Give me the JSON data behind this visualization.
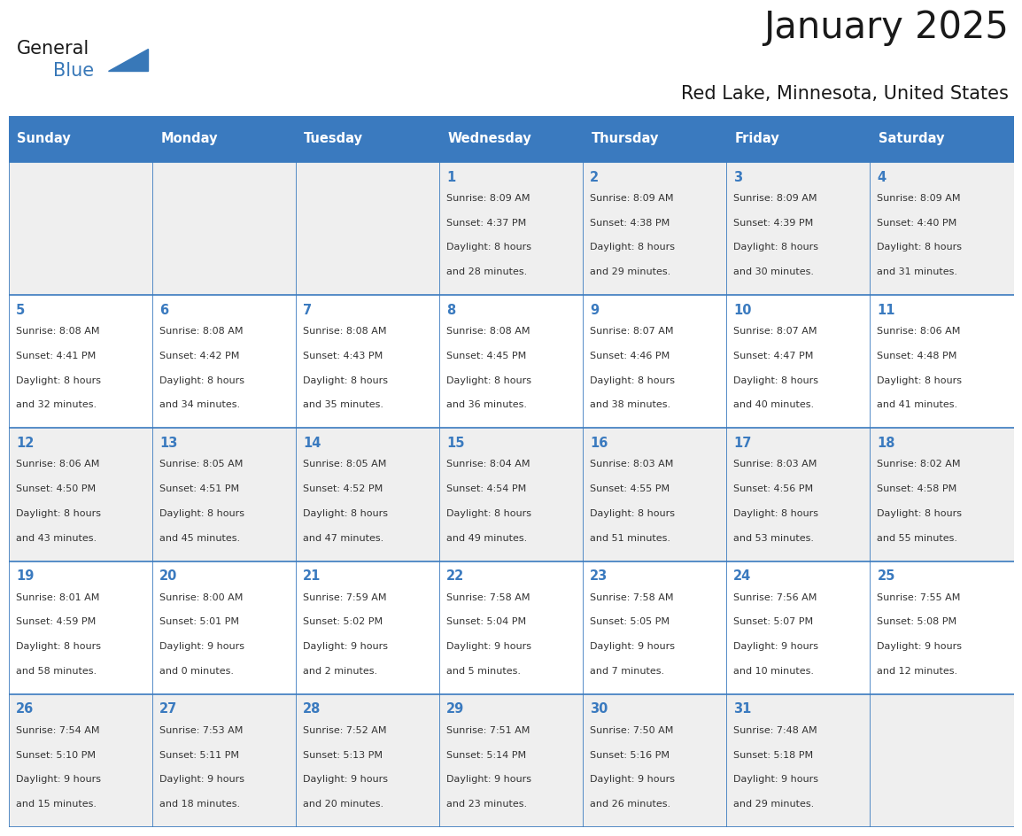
{
  "title": "January 2025",
  "subtitle": "Red Lake, Minnesota, United States",
  "header_bg": "#3a7abf",
  "header_text": "#ffffff",
  "row_bg_odd": "#efefef",
  "row_bg_even": "#ffffff",
  "cell_border": "#3a7abf",
  "day_names": [
    "Sunday",
    "Monday",
    "Tuesday",
    "Wednesday",
    "Thursday",
    "Friday",
    "Saturday"
  ],
  "title_color": "#1a1a1a",
  "subtitle_color": "#1a1a1a",
  "day_num_color": "#3a7abf",
  "cell_text_color": "#333333",
  "logo_general_color": "#1a1a1a",
  "logo_blue_color": "#3878b8",
  "calendar_data": [
    [
      {
        "day": null
      },
      {
        "day": null
      },
      {
        "day": null
      },
      {
        "day": 1,
        "sunrise": "8:09 AM",
        "sunset": "4:37 PM",
        "daylight": "8 hours",
        "daylight2": "and 28 minutes."
      },
      {
        "day": 2,
        "sunrise": "8:09 AM",
        "sunset": "4:38 PM",
        "daylight": "8 hours",
        "daylight2": "and 29 minutes."
      },
      {
        "day": 3,
        "sunrise": "8:09 AM",
        "sunset": "4:39 PM",
        "daylight": "8 hours",
        "daylight2": "and 30 minutes."
      },
      {
        "day": 4,
        "sunrise": "8:09 AM",
        "sunset": "4:40 PM",
        "daylight": "8 hours",
        "daylight2": "and 31 minutes."
      }
    ],
    [
      {
        "day": 5,
        "sunrise": "8:08 AM",
        "sunset": "4:41 PM",
        "daylight": "8 hours",
        "daylight2": "and 32 minutes."
      },
      {
        "day": 6,
        "sunrise": "8:08 AM",
        "sunset": "4:42 PM",
        "daylight": "8 hours",
        "daylight2": "and 34 minutes."
      },
      {
        "day": 7,
        "sunrise": "8:08 AM",
        "sunset": "4:43 PM",
        "daylight": "8 hours",
        "daylight2": "and 35 minutes."
      },
      {
        "day": 8,
        "sunrise": "8:08 AM",
        "sunset": "4:45 PM",
        "daylight": "8 hours",
        "daylight2": "and 36 minutes."
      },
      {
        "day": 9,
        "sunrise": "8:07 AM",
        "sunset": "4:46 PM",
        "daylight": "8 hours",
        "daylight2": "and 38 minutes."
      },
      {
        "day": 10,
        "sunrise": "8:07 AM",
        "sunset": "4:47 PM",
        "daylight": "8 hours",
        "daylight2": "and 40 minutes."
      },
      {
        "day": 11,
        "sunrise": "8:06 AM",
        "sunset": "4:48 PM",
        "daylight": "8 hours",
        "daylight2": "and 41 minutes."
      }
    ],
    [
      {
        "day": 12,
        "sunrise": "8:06 AM",
        "sunset": "4:50 PM",
        "daylight": "8 hours",
        "daylight2": "and 43 minutes."
      },
      {
        "day": 13,
        "sunrise": "8:05 AM",
        "sunset": "4:51 PM",
        "daylight": "8 hours",
        "daylight2": "and 45 minutes."
      },
      {
        "day": 14,
        "sunrise": "8:05 AM",
        "sunset": "4:52 PM",
        "daylight": "8 hours",
        "daylight2": "and 47 minutes."
      },
      {
        "day": 15,
        "sunrise": "8:04 AM",
        "sunset": "4:54 PM",
        "daylight": "8 hours",
        "daylight2": "and 49 minutes."
      },
      {
        "day": 16,
        "sunrise": "8:03 AM",
        "sunset": "4:55 PM",
        "daylight": "8 hours",
        "daylight2": "and 51 minutes."
      },
      {
        "day": 17,
        "sunrise": "8:03 AM",
        "sunset": "4:56 PM",
        "daylight": "8 hours",
        "daylight2": "and 53 minutes."
      },
      {
        "day": 18,
        "sunrise": "8:02 AM",
        "sunset": "4:58 PM",
        "daylight": "8 hours",
        "daylight2": "and 55 minutes."
      }
    ],
    [
      {
        "day": 19,
        "sunrise": "8:01 AM",
        "sunset": "4:59 PM",
        "daylight": "8 hours",
        "daylight2": "and 58 minutes."
      },
      {
        "day": 20,
        "sunrise": "8:00 AM",
        "sunset": "5:01 PM",
        "daylight": "9 hours",
        "daylight2": "and 0 minutes."
      },
      {
        "day": 21,
        "sunrise": "7:59 AM",
        "sunset": "5:02 PM",
        "daylight": "9 hours",
        "daylight2": "and 2 minutes."
      },
      {
        "day": 22,
        "sunrise": "7:58 AM",
        "sunset": "5:04 PM",
        "daylight": "9 hours",
        "daylight2": "and 5 minutes."
      },
      {
        "day": 23,
        "sunrise": "7:58 AM",
        "sunset": "5:05 PM",
        "daylight": "9 hours",
        "daylight2": "and 7 minutes."
      },
      {
        "day": 24,
        "sunrise": "7:56 AM",
        "sunset": "5:07 PM",
        "daylight": "9 hours",
        "daylight2": "and 10 minutes."
      },
      {
        "day": 25,
        "sunrise": "7:55 AM",
        "sunset": "5:08 PM",
        "daylight": "9 hours",
        "daylight2": "and 12 minutes."
      }
    ],
    [
      {
        "day": 26,
        "sunrise": "7:54 AM",
        "sunset": "5:10 PM",
        "daylight": "9 hours",
        "daylight2": "and 15 minutes."
      },
      {
        "day": 27,
        "sunrise": "7:53 AM",
        "sunset": "5:11 PM",
        "daylight": "9 hours",
        "daylight2": "and 18 minutes."
      },
      {
        "day": 28,
        "sunrise": "7:52 AM",
        "sunset": "5:13 PM",
        "daylight": "9 hours",
        "daylight2": "and 20 minutes."
      },
      {
        "day": 29,
        "sunrise": "7:51 AM",
        "sunset": "5:14 PM",
        "daylight": "9 hours",
        "daylight2": "and 23 minutes."
      },
      {
        "day": 30,
        "sunrise": "7:50 AM",
        "sunset": "5:16 PM",
        "daylight": "9 hours",
        "daylight2": "and 26 minutes."
      },
      {
        "day": 31,
        "sunrise": "7:48 AM",
        "sunset": "5:18 PM",
        "daylight": "9 hours",
        "daylight2": "and 29 minutes."
      },
      {
        "day": null
      }
    ]
  ]
}
